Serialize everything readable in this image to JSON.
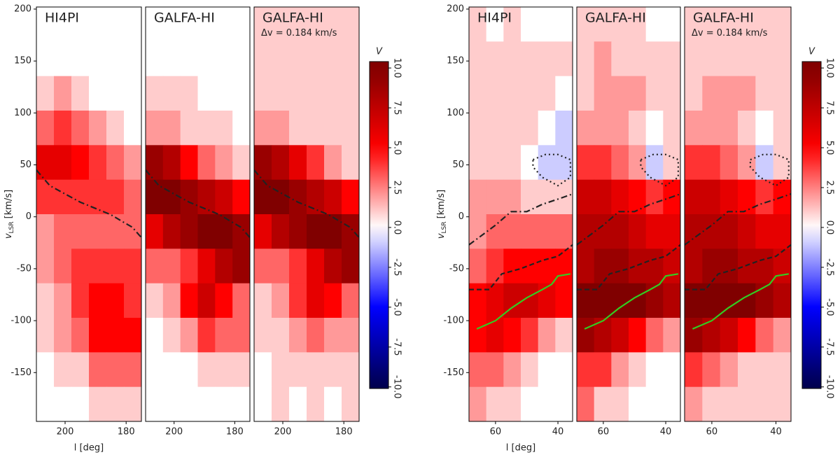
{
  "chart_data": [
    {
      "type": "heatmap",
      "x_label": "l [deg]",
      "y_label": {
        "main": "v",
        "sub": "LSR",
        "unit": " [km/s]"
      },
      "xlim": [
        209.4,
        175
      ],
      "xticks": [
        200,
        180
      ],
      "ylim": [
        -197,
        202
      ],
      "yticks": [
        200,
        150,
        100,
        50,
        0,
        -50,
        -100,
        -150
      ],
      "colormap": [
        "#00004c",
        "#0000ff",
        "#ffffff",
        "#ff0000",
        "#800000"
      ],
      "colorbar": {
        "label": "V",
        "lim": [
          -10.1,
          10.4
        ],
        "ticks": [
          {
            "value": 10,
            "label": "10.0"
          },
          {
            "value": 7.5,
            "label": "7.5"
          },
          {
            "value": 5,
            "label": "5.0"
          },
          {
            "value": 2.5,
            "label": "2.5"
          },
          {
            "value": 0,
            "label": "0.0"
          },
          {
            "value": -2.5,
            "label": "-2.5"
          },
          {
            "value": -5,
            "label": "-5.0"
          },
          {
            "value": -7.5,
            "label": "-7.5"
          },
          {
            "value": -10,
            "label": "-10.0"
          }
        ]
      },
      "panels": [
        {
          "title": "HI4PI",
          "values": [
            [
              0,
              0,
              0,
              0,
              0,
              0
            ],
            [
              0,
              0,
              0,
              0,
              0,
              0
            ],
            [
              1,
              2,
              1,
              0,
              0,
              0
            ],
            [
              3,
              4,
              3,
              2,
              1,
              0
            ],
            [
              6,
              6,
              5,
              4,
              3,
              2
            ],
            [
              4,
              4,
              4,
              4,
              4,
              3
            ],
            [
              2,
              3,
              3,
              3,
              3,
              3
            ],
            [
              2,
              3,
              4,
              4,
              4,
              4
            ],
            [
              1,
              2,
              4,
              5,
              5,
              4
            ],
            [
              1,
              2,
              3,
              5,
              5,
              5
            ],
            [
              0,
              1,
              1,
              3,
              3,
              3
            ],
            [
              0,
              0,
              0,
              1,
              1,
              1
            ]
          ]
        },
        {
          "title": "GALFA-HI",
          "values": [
            [
              0,
              0,
              0,
              0,
              0,
              0
            ],
            [
              0,
              0,
              0,
              0,
              0,
              0
            ],
            [
              1,
              1,
              1,
              0,
              0,
              0
            ],
            [
              2,
              2,
              1,
              1,
              1,
              0
            ],
            [
              9,
              8,
              5,
              3,
              2,
              1
            ],
            [
              10,
              10,
              9,
              8,
              7,
              5
            ],
            [
              6,
              8,
              9,
              10,
              10,
              9
            ],
            [
              3,
              3,
              4,
              6,
              8,
              9
            ],
            [
              1,
              2,
              5,
              7,
              5,
              3
            ],
            [
              0,
              1,
              2,
              4,
              3,
              3
            ],
            [
              0,
              0,
              0,
              1,
              1,
              1
            ],
            [
              0,
              0,
              0,
              0,
              0,
              0
            ]
          ]
        },
        {
          "title": "GALFA-HI",
          "subtitle": "Δv = 0.184 km/s",
          "values": [
            [
              1,
              1,
              1,
              1,
              1,
              1
            ],
            [
              1,
              1,
              1,
              1,
              1,
              1
            ],
            [
              1,
              1,
              1,
              1,
              1,
              1
            ],
            [
              2,
              2,
              1,
              1,
              1,
              1
            ],
            [
              9,
              8,
              6,
              4,
              2,
              1
            ],
            [
              10,
              10,
              9,
              8,
              7,
              5
            ],
            [
              6,
              8,
              9,
              10,
              10,
              9
            ],
            [
              3,
              3,
              4,
              6,
              8,
              9
            ],
            [
              1,
              2,
              4,
              6,
              5,
              3
            ],
            [
              1,
              1,
              2,
              3,
              2,
              2
            ],
            [
              0,
              1,
              1,
              1,
              1,
              1
            ],
            [
              0,
              1,
              0,
              1,
              0,
              1
            ]
          ]
        }
      ],
      "lines": [
        {
          "style": "dashdot",
          "color": "#222222",
          "x": [
            209.4,
            205,
            200,
            195,
            190,
            185,
            181,
            178,
            175
          ],
          "y": [
            45,
            30,
            22,
            14,
            8,
            2,
            -5,
            -10,
            -20
          ]
        }
      ]
    },
    {
      "type": "heatmap",
      "x_label": "l [deg]",
      "y_label": {
        "main": "v",
        "sub": "LSR",
        "unit": " [km/s]"
      },
      "xlim": [
        68.5,
        35.3
      ],
      "xticks": [
        60,
        40
      ],
      "ylim": [
        -197,
        202
      ],
      "yticks": [
        200,
        150,
        100,
        50,
        0,
        -50,
        -100,
        -150
      ],
      "colormap": [
        "#00004c",
        "#0000ff",
        "#ffffff",
        "#ff0000",
        "#800000"
      ],
      "colorbar": {
        "label": "V",
        "lim": [
          -10.1,
          10.4
        ],
        "ticks": [
          {
            "value": 10,
            "label": "10.0"
          },
          {
            "value": 7.5,
            "label": "7.5"
          },
          {
            "value": 5,
            "label": "5.0"
          },
          {
            "value": 2.5,
            "label": "2.5"
          },
          {
            "value": 0,
            "label": "0.0"
          },
          {
            "value": -2.5,
            "label": "-2.5"
          },
          {
            "value": -5,
            "label": "-5.0"
          },
          {
            "value": -7.5,
            "label": "-7.5"
          },
          {
            "value": -10,
            "label": "-10.0"
          }
        ]
      },
      "panels": [
        {
          "title": "HI4PI",
          "values": [
            [
              1,
              0,
              1,
              0,
              0,
              0
            ],
            [
              1,
              1,
              1,
              1,
              1,
              1
            ],
            [
              1,
              1,
              1,
              1,
              1,
              0
            ],
            [
              1,
              1,
              1,
              1,
              0,
              -1
            ],
            [
              1,
              1,
              1,
              0,
              -1,
              -1
            ],
            [
              2,
              2,
              2,
              1,
              1,
              1
            ],
            [
              2,
              3,
              3,
              3,
              3,
              3
            ],
            [
              3,
              4,
              5,
              5,
              5,
              5
            ],
            [
              5,
              6,
              7,
              7,
              6,
              5
            ],
            [
              5,
              6,
              5,
              4,
              2,
              1
            ],
            [
              3,
              3,
              2,
              1,
              0,
              0
            ],
            [
              2,
              1,
              1,
              0,
              0,
              0
            ]
          ]
        },
        {
          "title": "GALFA-HI",
          "values": [
            [
              1,
              1,
              1,
              1,
              0,
              0
            ],
            [
              1,
              2,
              1,
              1,
              1,
              1
            ],
            [
              1,
              2,
              2,
              2,
              1,
              1
            ],
            [
              2,
              2,
              2,
              1,
              0,
              1
            ],
            [
              4,
              4,
              3,
              2,
              -1,
              1
            ],
            [
              7,
              7,
              6,
              5,
              4,
              5
            ],
            [
              8,
              8,
              8,
              7,
              6,
              6
            ],
            [
              8,
              9,
              9,
              8,
              8,
              7
            ],
            [
              10,
              10,
              10,
              10,
              9,
              8
            ],
            [
              9,
              8,
              7,
              5,
              3,
              2
            ],
            [
              4,
              4,
              2,
              1,
              0,
              0
            ],
            [
              3,
              1,
              1,
              0,
              0,
              0
            ]
          ]
        },
        {
          "title": "GALFA-HI",
          "subtitle": "Δv = 0.184 km/s",
          "values": [
            [
              1,
              1,
              1,
              1,
              1,
              1
            ],
            [
              1,
              1,
              1,
              1,
              1,
              1
            ],
            [
              1,
              2,
              2,
              2,
              1,
              1
            ],
            [
              2,
              2,
              2,
              1,
              0,
              1
            ],
            [
              4,
              4,
              3,
              2,
              -1,
              1
            ],
            [
              7,
              7,
              6,
              5,
              4,
              5
            ],
            [
              8,
              8,
              8,
              7,
              6,
              6
            ],
            [
              8,
              9,
              9,
              8,
              8,
              7
            ],
            [
              10,
              10,
              10,
              10,
              9,
              8
            ],
            [
              9,
              8,
              7,
              5,
              3,
              2
            ],
            [
              4,
              3,
              2,
              1,
              1,
              1
            ],
            [
              2,
              1,
              1,
              1,
              1,
              1
            ]
          ]
        }
      ],
      "lines": [
        {
          "style": "dashdot",
          "color": "#222222",
          "x": [
            68.5,
            60,
            55,
            50,
            45,
            40,
            35.3
          ],
          "y": [
            -27,
            -8,
            5,
            5,
            12,
            17,
            22
          ]
        },
        {
          "style": "dashed",
          "color": "#222222",
          "x": [
            68.5,
            62,
            58,
            52,
            45,
            40,
            35.3
          ],
          "y": [
            -70,
            -70,
            -55,
            -50,
            -42,
            -38,
            -27
          ]
        },
        {
          "style": "solid",
          "color": "#33cc22",
          "x": [
            66,
            60,
            55,
            50,
            45,
            42,
            40,
            36
          ],
          "y": [
            -108,
            -100,
            -88,
            -78,
            -70,
            -65,
            -57,
            -55
          ]
        },
        {
          "style": "dotted",
          "color": "#222222",
          "x": [
            48,
            44,
            40,
            36,
            36,
            40,
            45,
            48,
            48
          ],
          "y": [
            55,
            60,
            60,
            55,
            38,
            30,
            38,
            48,
            55
          ]
        }
      ]
    }
  ]
}
